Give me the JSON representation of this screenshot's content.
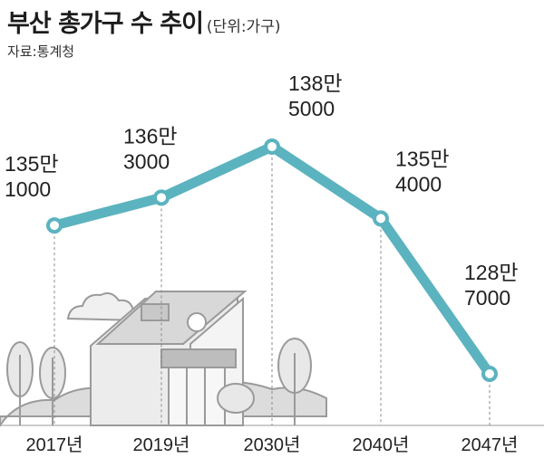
{
  "header": {
    "title": "부산 총가구 수 추이",
    "unit": "(단위:가구)",
    "source": "자료:통계청"
  },
  "chart_data": {
    "type": "line",
    "title": "부산 총가구 수 추이",
    "unit": "가구",
    "categories": [
      "2017년",
      "2019년",
      "2030년",
      "2040년",
      "2047년"
    ],
    "values": [
      1351000,
      1363000,
      1385000,
      1354000,
      1287000
    ],
    "labels": [
      [
        "135만",
        "1000"
      ],
      [
        "136만",
        "3000"
      ],
      [
        "138만",
        "5000"
      ],
      [
        "135만",
        "4000"
      ],
      [
        "128만",
        "7000"
      ]
    ],
    "line_color": "#5bb3bf",
    "marker_fill": "#ffffff",
    "grid": false
  }
}
